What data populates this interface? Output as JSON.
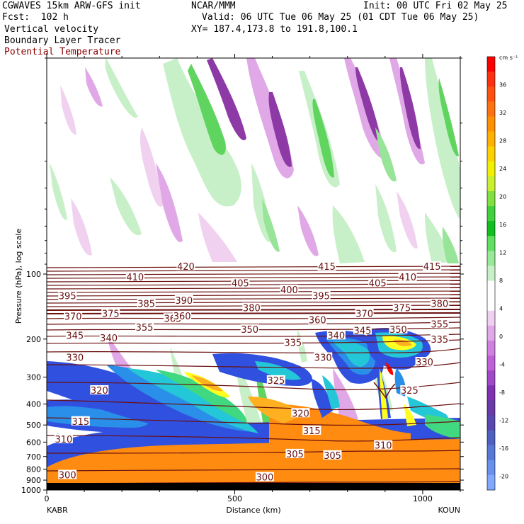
{
  "header": {
    "line1_left": "CGWAVES 15km ARW-GFS init",
    "line1_mid": "NCAR/MMM",
    "line1_right": "Init: 00 UTC Fri 02 May 25",
    "line2_left": "Fcst:  102 h",
    "line2_right": "Valid: 06 UTC Tue 06 May 25 (01 CDT Tue 06 May 25)",
    "line3_left": "Vertical velocity",
    "line3_right": "XY= 187.4,173.8 to 191.8,100.1",
    "line4_left": "Boundary Layer Tracer",
    "line5_left": "Potential Temperature"
  },
  "colors": {
    "theta_contour": "#6b0f0f",
    "w_positive": [
      "#c8f0c8",
      "#98e498",
      "#5fd45f",
      "#28bb28"
    ],
    "w_negative": [
      "#f0d2f0",
      "#e0a8e6",
      "#c278d2",
      "#8e3aa6"
    ],
    "tracer": [
      "#3050e0",
      "#2a8fe8",
      "#24c7d8",
      "#40d880",
      "#c8f030",
      "#ffff20",
      "#ffb020",
      "#ff8c10"
    ]
  },
  "chart_data": {
    "type": "heatmap",
    "title": "",
    "xlabel": "Distance (km)",
    "ylabel": "Pressure (hPa), log scale",
    "xlim": [
      0,
      1100
    ],
    "ylim": [
      1000,
      10
    ],
    "y_scale": "log",
    "x_ticks": [
      0,
      500,
      1000
    ],
    "y_ticks": [
      100,
      200,
      300,
      400,
      500,
      600,
      700,
      800,
      900,
      1000
    ],
    "endpoints": {
      "left": "KABR",
      "right": "KOUN"
    },
    "colorbar": {
      "units": "cm s⁻¹",
      "labels": [
        36,
        32,
        28,
        24,
        20,
        16,
        12,
        8,
        4,
        0,
        -4,
        -8,
        -12,
        -16,
        -20
      ],
      "colors": [
        "#ff0000",
        "#ff3010",
        "#ff5010",
        "#ff7010",
        "#ff9000",
        "#ffb000",
        "#ffd000",
        "#f0f000",
        "#c8f030",
        "#80e040",
        "#40d040",
        "#10c020",
        "#60e060",
        "#98e898",
        "#c8f0c8",
        "#ffffff",
        "#ffffff",
        "#f0d0f0",
        "#e0a8e8",
        "#d080e0",
        "#c060d8",
        "#a048c8",
        "#8030b0",
        "#6a3aa8",
        "#5848b0",
        "#5060c0",
        "#5878d8",
        "#6890ec",
        "#80a8ff"
      ]
    },
    "theta_labels": [
      {
        "label": "420",
        "x": 370,
        "p": 92
      },
      {
        "label": "415",
        "x": 745,
        "p": 92
      },
      {
        "label": "415",
        "x": 1025,
        "p": 92
      },
      {
        "label": "410",
        "x": 235,
        "p": 103
      },
      {
        "label": "405",
        "x": 515,
        "p": 110
      },
      {
        "label": "405",
        "x": 880,
        "p": 110
      },
      {
        "label": "410",
        "x": 960,
        "p": 103
      },
      {
        "label": "400",
        "x": 645,
        "p": 118
      },
      {
        "label": "395",
        "x": 55,
        "p": 126
      },
      {
        "label": "395",
        "x": 730,
        "p": 126
      },
      {
        "label": "390",
        "x": 365,
        "p": 132
      },
      {
        "label": "385",
        "x": 265,
        "p": 137
      },
      {
        "label": "380",
        "x": 545,
        "p": 143
      },
      {
        "label": "380",
        "x": 1045,
        "p": 137
      },
      {
        "label": "375",
        "x": 170,
        "p": 152
      },
      {
        "label": "375",
        "x": 945,
        "p": 143
      },
      {
        "label": "370",
        "x": 70,
        "p": 157
      },
      {
        "label": "370",
        "x": 845,
        "p": 152
      },
      {
        "label": "365",
        "x": 335,
        "p": 160
      },
      {
        "label": "360",
        "x": 360,
        "p": 156
      },
      {
        "label": "360",
        "x": 720,
        "p": 163
      },
      {
        "label": "355",
        "x": 260,
        "p": 176
      },
      {
        "label": "355",
        "x": 1045,
        "p": 170
      },
      {
        "label": "350",
        "x": 540,
        "p": 180
      },
      {
        "label": "350",
        "x": 935,
        "p": 180
      },
      {
        "label": "345",
        "x": 75,
        "p": 192
      },
      {
        "label": "345",
        "x": 840,
        "p": 182
      },
      {
        "label": "340",
        "x": 165,
        "p": 197
      },
      {
        "label": "340",
        "x": 770,
        "p": 192
      },
      {
        "label": "335",
        "x": 655,
        "p": 207
      },
      {
        "label": "335",
        "x": 1045,
        "p": 200
      },
      {
        "label": "330",
        "x": 75,
        "p": 243
      },
      {
        "label": "330",
        "x": 735,
        "p": 243
      },
      {
        "label": "330",
        "x": 1005,
        "p": 255
      },
      {
        "label": "325",
        "x": 610,
        "p": 310
      },
      {
        "label": "325",
        "x": 965,
        "p": 345
      },
      {
        "label": "320",
        "x": 140,
        "p": 345
      },
      {
        "label": "320",
        "x": 675,
        "p": 440
      },
      {
        "label": "315",
        "x": 90,
        "p": 480
      },
      {
        "label": "315",
        "x": 705,
        "p": 530
      },
      {
        "label": "310",
        "x": 45,
        "p": 580
      },
      {
        "label": "310",
        "x": 895,
        "p": 620
      },
      {
        "label": "305",
        "x": 660,
        "p": 680
      },
      {
        "label": "305",
        "x": 760,
        "p": 690
      },
      {
        "label": "300",
        "x": 55,
        "p": 850
      },
      {
        "label": "300",
        "x": 580,
        "p": 870
      }
    ]
  }
}
